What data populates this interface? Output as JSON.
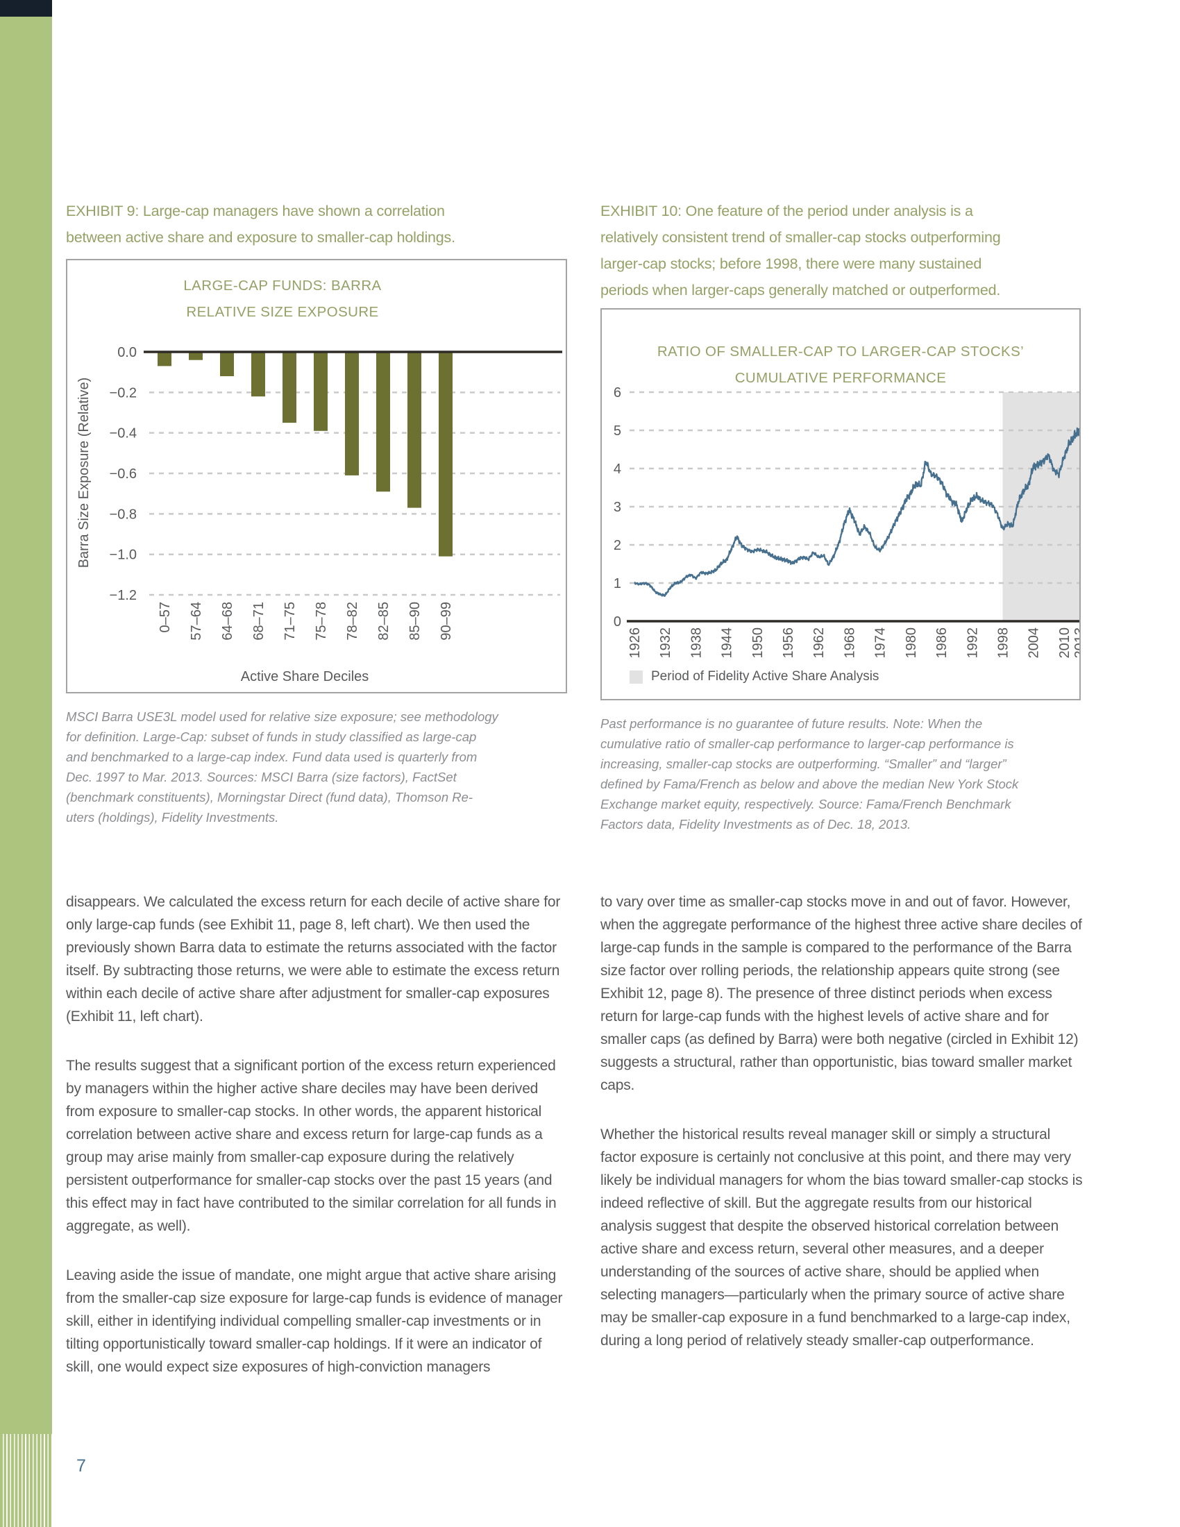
{
  "page": {
    "number": "7"
  },
  "colors": {
    "accent_olive": "#95A167",
    "bar_olive": "#6C7132",
    "line_blue": "#47708F",
    "sidebar_green": "#ACC47E",
    "sidebar_navy": "#16202C",
    "body_text": "#58585A",
    "caption_text": "#8C8D90",
    "grid_gray": "#C9C9C9",
    "shade_gray": "#E2E2E3",
    "page_number_blue": "#4A7293",
    "box_border": "#A3A3A3",
    "axis_dark": "#2E2A26"
  },
  "exhibit9": {
    "heading_lines": [
      "EXHIBIT 9: Large-cap managers have shown a correlation",
      "between active share and exposure to smaller-cap holdings."
    ],
    "caption_lines": [
      "MSCI Barra USE3L model used for relative size exposure; see methodology",
      "for definition. Large-Cap: subset of funds in study classified as large-cap",
      "and benchmarked to a large-cap index. Fund data used is quarterly from",
      "Dec. 1997 to Mar. 2013. Sources: MSCI Barra (size factors), FactSet",
      "(benchmark constituents), Morningstar Direct (fund data), Thomson Re-",
      "uters (holdings), Fidelity Investments."
    ]
  },
  "exhibit10": {
    "heading_lines": [
      "EXHIBIT 10: One feature of the period under analysis is a",
      "relatively consistent trend of smaller-cap stocks outperforming",
      "larger-cap stocks; before 1998, there were many sustained",
      "periods when larger-caps generally matched or outperformed."
    ],
    "legend_label": "Period of Fidelity Active Share Analysis",
    "caption_lines": [
      "Past performance is no guarantee of future results. Note: When the",
      "cumulative ratio of smaller-cap performance to larger-cap performance is",
      "increasing, smaller-cap stocks are outperforming. “Smaller” and “larger”",
      "defined by Fama/French as below and above the median New York Stock",
      "Exchange market equity, respectively. Source: Fama/French Benchmark",
      "Factors data, Fidelity Investments as of Dec. 18, 2013."
    ]
  },
  "body": {
    "left_paragraphs": [
      "disappears. We calculated the excess return for each decile of active share for only large-cap funds (see Exhibit 11, page 8, left chart). We then used the previously shown Barra data to estimate the returns associated with the factor itself. By subtracting those returns, we were able to estimate the excess return within each decile of active share after adjustment for smaller-cap exposures (Exhibit 11, left chart).",
      "The results suggest that a significant portion of the excess return experienced by managers within the higher active share deciles may have been derived from exposure to smaller-cap stocks. In other words, the apparent historical correlation between active share and excess return for large-cap funds as a group may arise mainly from smaller-cap exposure during the relatively persistent outperformance for smaller-cap stocks over the past 15 years (and this effect may in fact have contributed to the similar correlation for all funds in aggregate, as well).",
      "Leaving aside the issue of mandate, one might argue that active share arising from the smaller-cap size exposure for large-cap funds is evidence of manager skill, either in identifying individual compelling smaller-cap investments or in tilting opportunistically toward smaller-cap holdings. If it were an indicator of skill, one would expect size exposures of high-conviction managers"
    ],
    "right_paragraphs": [
      "to vary over time as smaller-cap stocks move in and out of favor. However, when the aggregate performance of the highest three active share deciles of large-cap funds in the sample is compared to the performance of the Barra size factor over rolling periods, the relationship appears quite strong (see Exhibit 12, page 8). The presence of three distinct periods when excess return for large-cap funds with the highest levels of active share and for smaller caps (as defined by Barra) were both negative (circled in Exhibit 12) suggests a structural, rather than opportunistic, bias toward smaller market caps.",
      "Whether the historical results reveal manager skill or simply a structural factor exposure is certainly not conclusive at this point, and there may very likely be individual managers for whom the bias toward smaller-cap stocks is indeed reflective of skill. But the aggregate results from our historical analysis suggest that despite the observed historical correlation between active share and excess return, several other measures, and a deeper understanding of the sources of active share, should be applied when selecting managers—particularly when the primary source of active share may be smaller-cap exposure in a fund benchmarked to a large-cap index, during a long period of relatively steady smaller-cap outperformance."
    ]
  },
  "chart_data": [
    {
      "type": "bar",
      "title_lines": [
        "LARGE-CAP FUNDS: BARRA",
        "RELATIVE SIZE EXPOSURE"
      ],
      "categories": [
        "0–57",
        "57–64",
        "64–68",
        "68–71",
        "71–75",
        "75–78",
        "78–82",
        "82–85",
        "85–90",
        "90–99"
      ],
      "values": [
        -0.07,
        -0.04,
        -0.12,
        -0.22,
        -0.35,
        -0.39,
        -0.61,
        -0.69,
        -0.77,
        -1.01
      ],
      "xlabel": "Active Share Deciles",
      "ylabel": "Barra Size Exposure (Relative)",
      "ylim": [
        -1.2,
        0
      ],
      "yticks": [
        0,
        -0.2,
        -0.4,
        -0.6,
        -0.8,
        -1.0,
        -1.2
      ],
      "ytick_labels": [
        "0.0",
        "−0.2",
        "−0.4",
        "−0.6",
        "−0.8",
        "−1.0",
        "−1.2"
      ],
      "grid": "dashed horizontal",
      "bar_color": "#6C7132"
    },
    {
      "type": "line",
      "title_lines": [
        "RATIO OF SMALLER-CAP TO LARGER-CAP STOCKS’",
        "CUMULATIVE PERFORMANCE"
      ],
      "xlabel": "",
      "ylabel": "",
      "xlim": [
        1926,
        2013
      ],
      "ylim": [
        0,
        6
      ],
      "yticks": [
        0,
        1,
        2,
        3,
        4,
        5,
        6
      ],
      "xticks": [
        1926,
        1932,
        1938,
        1944,
        1950,
        1956,
        1962,
        1968,
        1974,
        1980,
        1986,
        1992,
        1998,
        2004,
        2010,
        2013
      ],
      "grid": "dashed horizontal",
      "line_color": "#47708F",
      "legend_position": "bottom-left inside box",
      "shaded_region": {
        "from": 1998,
        "to": 2013,
        "label": "Period of Fidelity Active Share Analysis",
        "color": "#E2E2E3"
      },
      "series": [
        {
          "name": "Ratio of smaller-cap to larger-cap stocks’ cumulative performance",
          "points": [
            [
              1926,
              1.0
            ],
            [
              1927,
              0.97
            ],
            [
              1928,
              1.0
            ],
            [
              1929,
              0.95
            ],
            [
              1930,
              0.78
            ],
            [
              1931,
              0.7
            ],
            [
              1932,
              0.68
            ],
            [
              1933,
              0.88
            ],
            [
              1934,
              1.0
            ],
            [
              1935,
              1.02
            ],
            [
              1936,
              1.15
            ],
            [
              1937,
              1.22
            ],
            [
              1938,
              1.12
            ],
            [
              1939,
              1.28
            ],
            [
              1940,
              1.25
            ],
            [
              1941,
              1.28
            ],
            [
              1942,
              1.35
            ],
            [
              1943,
              1.52
            ],
            [
              1944,
              1.6
            ],
            [
              1945,
              1.9
            ],
            [
              1946,
              2.22
            ],
            [
              1947,
              1.98
            ],
            [
              1948,
              1.88
            ],
            [
              1949,
              1.82
            ],
            [
              1950,
              1.88
            ],
            [
              1951,
              1.85
            ],
            [
              1952,
              1.8
            ],
            [
              1953,
              1.7
            ],
            [
              1954,
              1.65
            ],
            [
              1955,
              1.62
            ],
            [
              1956,
              1.58
            ],
            [
              1957,
              1.52
            ],
            [
              1958,
              1.62
            ],
            [
              1959,
              1.68
            ],
            [
              1960,
              1.62
            ],
            [
              1961,
              1.8
            ],
            [
              1962,
              1.68
            ],
            [
              1963,
              1.72
            ],
            [
              1964,
              1.48
            ],
            [
              1965,
              1.72
            ],
            [
              1966,
              2.05
            ],
            [
              1967,
              2.55
            ],
            [
              1968,
              2.92
            ],
            [
              1969,
              2.65
            ],
            [
              1970,
              2.28
            ],
            [
              1971,
              2.48
            ],
            [
              1972,
              2.3
            ],
            [
              1973,
              1.95
            ],
            [
              1974,
              1.85
            ],
            [
              1975,
              2.05
            ],
            [
              1976,
              2.3
            ],
            [
              1977,
              2.6
            ],
            [
              1978,
              2.85
            ],
            [
              1979,
              3.15
            ],
            [
              1980,
              3.35
            ],
            [
              1981,
              3.6
            ],
            [
              1982,
              3.55
            ],
            [
              1983,
              4.2
            ],
            [
              1984,
              3.85
            ],
            [
              1985,
              3.8
            ],
            [
              1986,
              3.65
            ],
            [
              1987,
              3.35
            ],
            [
              1988,
              3.15
            ],
            [
              1989,
              3.05
            ],
            [
              1990,
              2.6
            ],
            [
              1991,
              2.95
            ],
            [
              1992,
              3.2
            ],
            [
              1993,
              3.28
            ],
            [
              1994,
              3.15
            ],
            [
              1995,
              3.1
            ],
            [
              1996,
              3.05
            ],
            [
              1997,
              2.8
            ],
            [
              1998,
              2.42
            ],
            [
              1999,
              2.55
            ],
            [
              2000,
              2.5
            ],
            [
              2001,
              3.1
            ],
            [
              2002,
              3.4
            ],
            [
              2003,
              3.55
            ],
            [
              2004,
              4.05
            ],
            [
              2005,
              4.1
            ],
            [
              2006,
              4.2
            ],
            [
              2007,
              4.35
            ],
            [
              2008,
              3.95
            ],
            [
              2009,
              3.85
            ],
            [
              2010,
              4.3
            ],
            [
              2011,
              4.65
            ],
            [
              2012,
              4.85
            ],
            [
              2013,
              5.0
            ]
          ]
        }
      ]
    }
  ]
}
